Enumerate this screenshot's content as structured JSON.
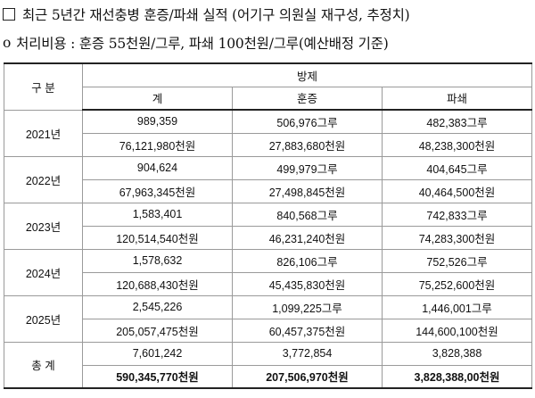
{
  "heading": {
    "box_glyph": "□",
    "text": "최근 5년간 재선충병 훈증/파쇄 실적 (어기구 의원실 재구성, 추정치)"
  },
  "note": {
    "mark": "o",
    "text": "처리비용 : 훈증 55천원/그루, 파쇄 100천원/그루(예산배정 기준)"
  },
  "table": {
    "col_category": "구  분",
    "col_group": "방제",
    "col_total": "계",
    "col_fumigation": "훈증",
    "col_crushing": "파쇄",
    "rows": [
      {
        "year": "2021년",
        "total_count": "989,359",
        "fum_count": "506,976그루",
        "crush_count": "482,383그루",
        "total_cost": "76,121,980천원",
        "fum_cost": "27,883,680천원",
        "crush_cost": "48,238,300천원"
      },
      {
        "year": "2022년",
        "total_count": "904,624",
        "fum_count": "499,979그루",
        "crush_count": "404,645그루",
        "total_cost": "67,963,345천원",
        "fum_cost": "27,498,845천원",
        "crush_cost": "40,464,500천원"
      },
      {
        "year": "2023년",
        "total_count": "1,583,401",
        "fum_count": "840,568그루",
        "crush_count": "742,833그루",
        "total_cost": "120,514,540천원",
        "fum_cost": "46,231,240천원",
        "crush_cost": "74,283,300천원"
      },
      {
        "year": "2024년",
        "total_count": "1,578,632",
        "fum_count": "826,106그루",
        "crush_count": "752,526그루",
        "total_cost": "120,688,430천원",
        "fum_cost": "45,435,830천원",
        "crush_cost": "75,252,600천원"
      },
      {
        "year": "2025년",
        "total_count": "2,545,226",
        "fum_count": "1,099,225그루",
        "crush_count": "1,446,001그루",
        "total_cost": "205,057,475천원",
        "fum_cost": "60,457,375천원",
        "crush_cost": "144,600,100천원"
      }
    ],
    "total": {
      "label": "총  계",
      "total_count": "7,601,242",
      "fum_count": "3,772,854",
      "crush_count": "3,828,388",
      "total_cost": "590,345,770천원",
      "fum_cost": "207,506,970천원",
      "crush_cost": "3,828,388,00천원"
    }
  }
}
